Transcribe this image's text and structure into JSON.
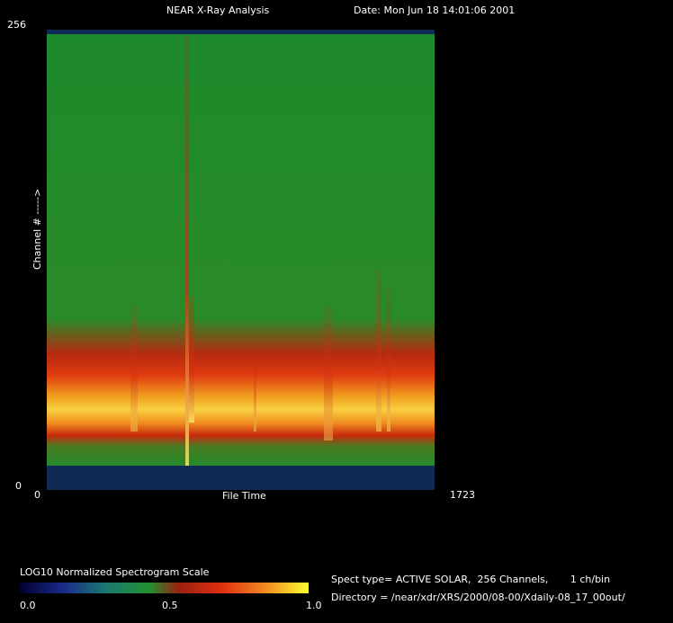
{
  "header": {
    "title": "NEAR X-Ray Analysis",
    "date": "Date: Mon Jun 18 14:01:06 2001"
  },
  "plot": {
    "y_axis_label": "Channel # ----->",
    "x_axis_label": "File Time",
    "y_ticks": [
      "256",
      "0"
    ],
    "x_ticks": [
      "0",
      "1723"
    ]
  },
  "colorbar": {
    "title": "LOG10 Normalized Spectrogram Scale",
    "ticks": [
      "0.0",
      "0.5",
      "1.0"
    ]
  },
  "info": {
    "spect_type": "Spect type= ACTIVE SOLAR,  256 Channels,       1 ch/bin",
    "directory": "Directory = /near/xdr/XRS/2000/08-00/Xdaily-08_17_00out/"
  }
}
